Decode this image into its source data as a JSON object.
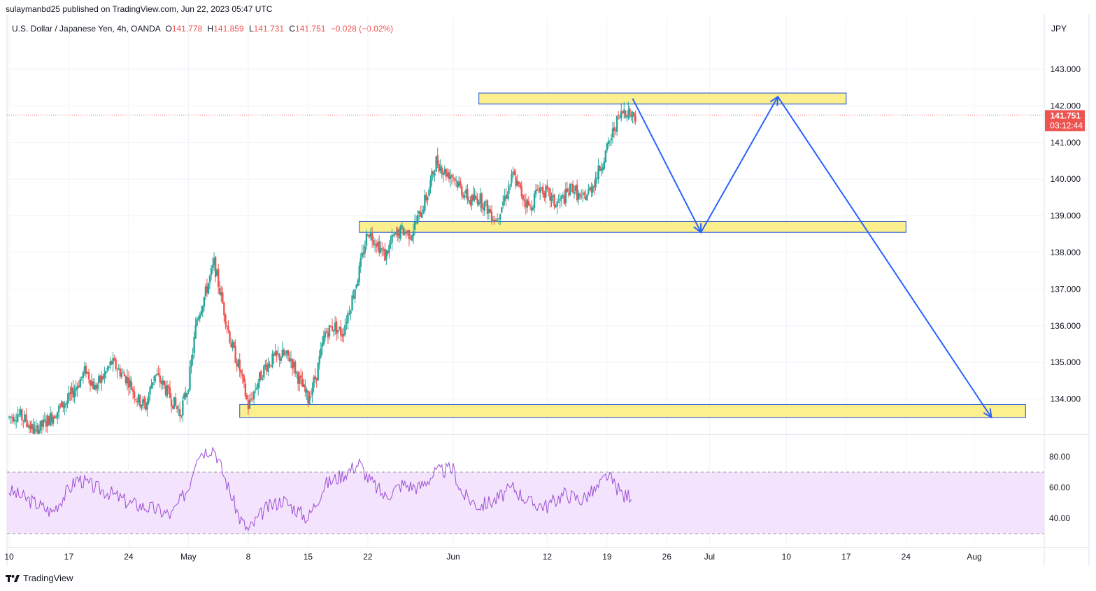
{
  "header": {
    "published": "sulaymanbd25 published on TradingView.com, Jun 22, 2023 05:47 UTC"
  },
  "legend": {
    "symbol": "U.S. Dollar / Japanese Yen, 4h, OANDA",
    "open_label": "O",
    "open": "141.778",
    "high_label": "H",
    "high": "141.859",
    "low_label": "L",
    "low": "141.731",
    "close_label": "C",
    "close": "141.751",
    "change": "−0.028 (−0.02%)"
  },
  "currency": "JPY",
  "brand": {
    "name": "TradingView"
  },
  "colors": {
    "up": "#26a69a",
    "down": "#ef5350",
    "zone_fill": "#fbf08d",
    "zone_border": "#1f4fd1",
    "arrow": "#2962ff",
    "rsi_line": "#9c4fd6",
    "rsi_band": "#f3e3fc",
    "grid": "#f0f3fa",
    "price_tag": "#ef5350"
  },
  "chart_data": [
    {
      "type": "candlestick",
      "title": "U.S. Dollar / Japanese Yen, 4h, OANDA",
      "ylim": [
        133.0,
        143.8
      ],
      "y_ticks": [
        134,
        135,
        136,
        137,
        138,
        139,
        140,
        141,
        142,
        143
      ],
      "y_tick_labels": [
        "134.000",
        "135.000",
        "136.000",
        "137.000",
        "138.000",
        "139.000",
        "140.000",
        "141.000",
        "142.000",
        "143.000"
      ],
      "x_tick_labels": [
        "10",
        "17",
        "24",
        "May",
        "8",
        "15",
        "22",
        "Jun",
        "12",
        "19",
        "26",
        "Jul",
        "10",
        "17",
        "24",
        "Aug"
      ],
      "x_tick_dates": [
        "2023-04-10",
        "2023-04-17",
        "2023-04-24",
        "2023-05-01",
        "2023-05-08",
        "2023-05-15",
        "2023-05-22",
        "2023-06-01",
        "2023-06-12",
        "2023-06-19",
        "2023-06-26",
        "2023-07-01",
        "2023-07-10",
        "2023-07-17",
        "2023-07-24",
        "2023-08-01"
      ],
      "price_path": [
        [
          "2023-04-10",
          133.5
        ],
        [
          "2023-04-11",
          133.6
        ],
        [
          "2023-04-12",
          133.4
        ],
        [
          "2023-04-13",
          133.1
        ],
        [
          "2023-04-14",
          133.3
        ],
        [
          "2023-04-17",
          134.0
        ],
        [
          "2023-04-18",
          134.4
        ],
        [
          "2023-04-19",
          134.8
        ],
        [
          "2023-04-20",
          134.3
        ],
        [
          "2023-04-21",
          134.6
        ],
        [
          "2023-04-22",
          135.0
        ],
        [
          "2023-04-24",
          134.5
        ],
        [
          "2023-04-25",
          134.0
        ],
        [
          "2023-04-26",
          133.8
        ],
        [
          "2023-04-27",
          134.7
        ],
        [
          "2023-04-28",
          134.4
        ],
        [
          "2023-04-29",
          134.0
        ],
        [
          "2023-04-30",
          133.6
        ],
        [
          "2023-05-01",
          134.4
        ],
        [
          "2023-05-02",
          136.2
        ],
        [
          "2023-05-03",
          136.9
        ],
        [
          "2023-05-04",
          137.7
        ],
        [
          "2023-05-05",
          136.6
        ],
        [
          "2023-05-06",
          135.5
        ],
        [
          "2023-05-07",
          134.8
        ],
        [
          "2023-05-08",
          133.8
        ],
        [
          "2023-05-09",
          134.4
        ],
        [
          "2023-05-10",
          134.9
        ],
        [
          "2023-05-11",
          135.1
        ],
        [
          "2023-05-12",
          135.2
        ],
        [
          "2023-05-13",
          135.1
        ],
        [
          "2023-05-14",
          134.5
        ],
        [
          "2023-05-15",
          134.0
        ],
        [
          "2023-05-16",
          134.7
        ],
        [
          "2023-05-17",
          135.8
        ],
        [
          "2023-05-18",
          136.0
        ],
        [
          "2023-05-19",
          135.8
        ],
        [
          "2023-05-20",
          136.6
        ],
        [
          "2023-05-21",
          137.5
        ],
        [
          "2023-05-22",
          138.6
        ],
        [
          "2023-05-23",
          138.3
        ],
        [
          "2023-05-24",
          137.9
        ],
        [
          "2023-05-25",
          138.4
        ],
        [
          "2023-05-26",
          138.6
        ],
        [
          "2023-05-27",
          138.5
        ],
        [
          "2023-05-28",
          139.0
        ],
        [
          "2023-05-29",
          139.6
        ],
        [
          "2023-05-30",
          140.5
        ],
        [
          "2023-05-31",
          140.2
        ],
        [
          "2023-06-01",
          140.1
        ],
        [
          "2023-06-02",
          139.7
        ],
        [
          "2023-06-03",
          139.4
        ],
        [
          "2023-06-04",
          139.5
        ],
        [
          "2023-06-05",
          139.2
        ],
        [
          "2023-06-06",
          138.9
        ],
        [
          "2023-06-07",
          139.5
        ],
        [
          "2023-06-08",
          140.1
        ],
        [
          "2023-06-09",
          139.6
        ],
        [
          "2023-06-10",
          139.2
        ],
        [
          "2023-06-11",
          139.8
        ],
        [
          "2023-06-12",
          139.6
        ],
        [
          "2023-06-13",
          139.3
        ],
        [
          "2023-06-14",
          139.5
        ],
        [
          "2023-06-15",
          139.8
        ],
        [
          "2023-06-16",
          139.4
        ],
        [
          "2023-06-17",
          139.7
        ],
        [
          "2023-06-18",
          140.2
        ],
        [
          "2023-06-19",
          140.8
        ],
        [
          "2023-06-20",
          141.5
        ],
        [
          "2023-06-21",
          141.9
        ],
        [
          "2023-06-22",
          141.751
        ]
      ],
      "zones": [
        {
          "from": "2023-06-04",
          "to": "2023-07-17",
          "low": 142.05,
          "high": 142.35
        },
        {
          "from": "2023-05-21",
          "to": "2023-07-24",
          "low": 138.55,
          "high": 138.85
        },
        {
          "from": "2023-05-07",
          "to": "2023-08-07",
          "low": 133.5,
          "high": 133.85
        }
      ],
      "projection_path": [
        [
          "2023-06-22",
          142.2
        ],
        [
          "2023-06-30",
          138.55
        ],
        [
          "2023-07-09",
          142.25
        ],
        [
          "2023-08-03",
          133.5
        ]
      ],
      "current_price": {
        "value": "141.751",
        "countdown": "03:12:44"
      }
    },
    {
      "type": "line",
      "title": "",
      "ylim": [
        28,
        88
      ],
      "y_ticks": [
        40,
        60,
        80
      ],
      "y_tick_labels": [
        "40.00",
        "60.00",
        "80.00"
      ],
      "band": [
        30,
        70
      ],
      "series": [
        {
          "x": [
            "2023-04-10",
            "2023-04-13",
            "2023-04-15",
            "2023-04-18",
            "2023-04-20",
            "2023-04-22",
            "2023-04-24",
            "2023-04-27",
            "2023-04-29",
            "2023-05-01",
            "2023-05-02",
            "2023-05-04",
            "2023-05-05",
            "2023-05-07",
            "2023-05-08",
            "2023-05-10",
            "2023-05-12",
            "2023-05-14",
            "2023-05-15",
            "2023-05-17",
            "2023-05-19",
            "2023-05-21",
            "2023-05-22",
            "2023-05-24",
            "2023-05-26",
            "2023-05-28",
            "2023-05-30",
            "2023-06-01",
            "2023-06-02",
            "2023-06-04",
            "2023-06-06",
            "2023-06-08",
            "2023-06-10",
            "2023-06-12",
            "2023-06-14",
            "2023-06-16",
            "2023-06-18",
            "2023-06-19",
            "2023-06-21",
            "2023-06-22"
          ],
          "values": [
            58,
            50,
            44,
            66,
            60,
            56,
            50,
            46,
            42,
            60,
            82,
            86,
            70,
            40,
            32,
            46,
            52,
            44,
            40,
            62,
            68,
            76,
            66,
            54,
            62,
            60,
            70,
            72,
            56,
            48,
            52,
            60,
            50,
            48,
            56,
            52,
            60,
            68,
            54,
            56
          ]
        }
      ]
    }
  ]
}
